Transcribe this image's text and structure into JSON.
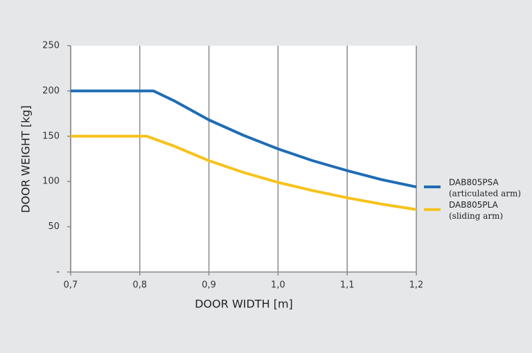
{
  "chart_data": {
    "type": "line",
    "x_label": "DOOR WIDTH [m]",
    "y_label": "DOOR WEIGHT [kg]",
    "xlim": [
      0.7,
      1.2
    ],
    "xticks": [
      {
        "value": 0.7,
        "label": "0,7"
      },
      {
        "value": 0.8,
        "label": "0,8"
      },
      {
        "value": 0.9,
        "label": "0,9"
      },
      {
        "value": 1.0,
        "label": "1,0"
      },
      {
        "value": 1.1,
        "label": "1,1"
      },
      {
        "value": 1.2,
        "label": "1,2"
      }
    ],
    "ylim": [
      0,
      250
    ],
    "yticks": [
      {
        "value": 0,
        "label": "-"
      },
      50,
      100,
      150,
      200,
      250
    ],
    "grid": "x",
    "legend": "right",
    "series": [
      {
        "name": "DAB805PSA",
        "legend_sublabel": "(articulated arm)",
        "color": "#1f6cb4",
        "x": [
          0.7,
          0.82,
          0.85,
          0.9,
          0.95,
          1.0,
          1.05,
          1.1,
          1.15,
          1.2
        ],
        "values": [
          200,
          200,
          189,
          168,
          151,
          136,
          123,
          112,
          102,
          94
        ]
      },
      {
        "name": "DAB805PLA",
        "legend_sublabel": "(sliding arm)",
        "color": "#f7c21b",
        "x": [
          0.7,
          0.81,
          0.85,
          0.9,
          0.95,
          1.0,
          1.05,
          1.1,
          1.15,
          1.2
        ],
        "values": [
          150,
          150,
          139,
          123,
          110,
          99,
          90,
          82,
          75,
          69
        ]
      }
    ]
  }
}
